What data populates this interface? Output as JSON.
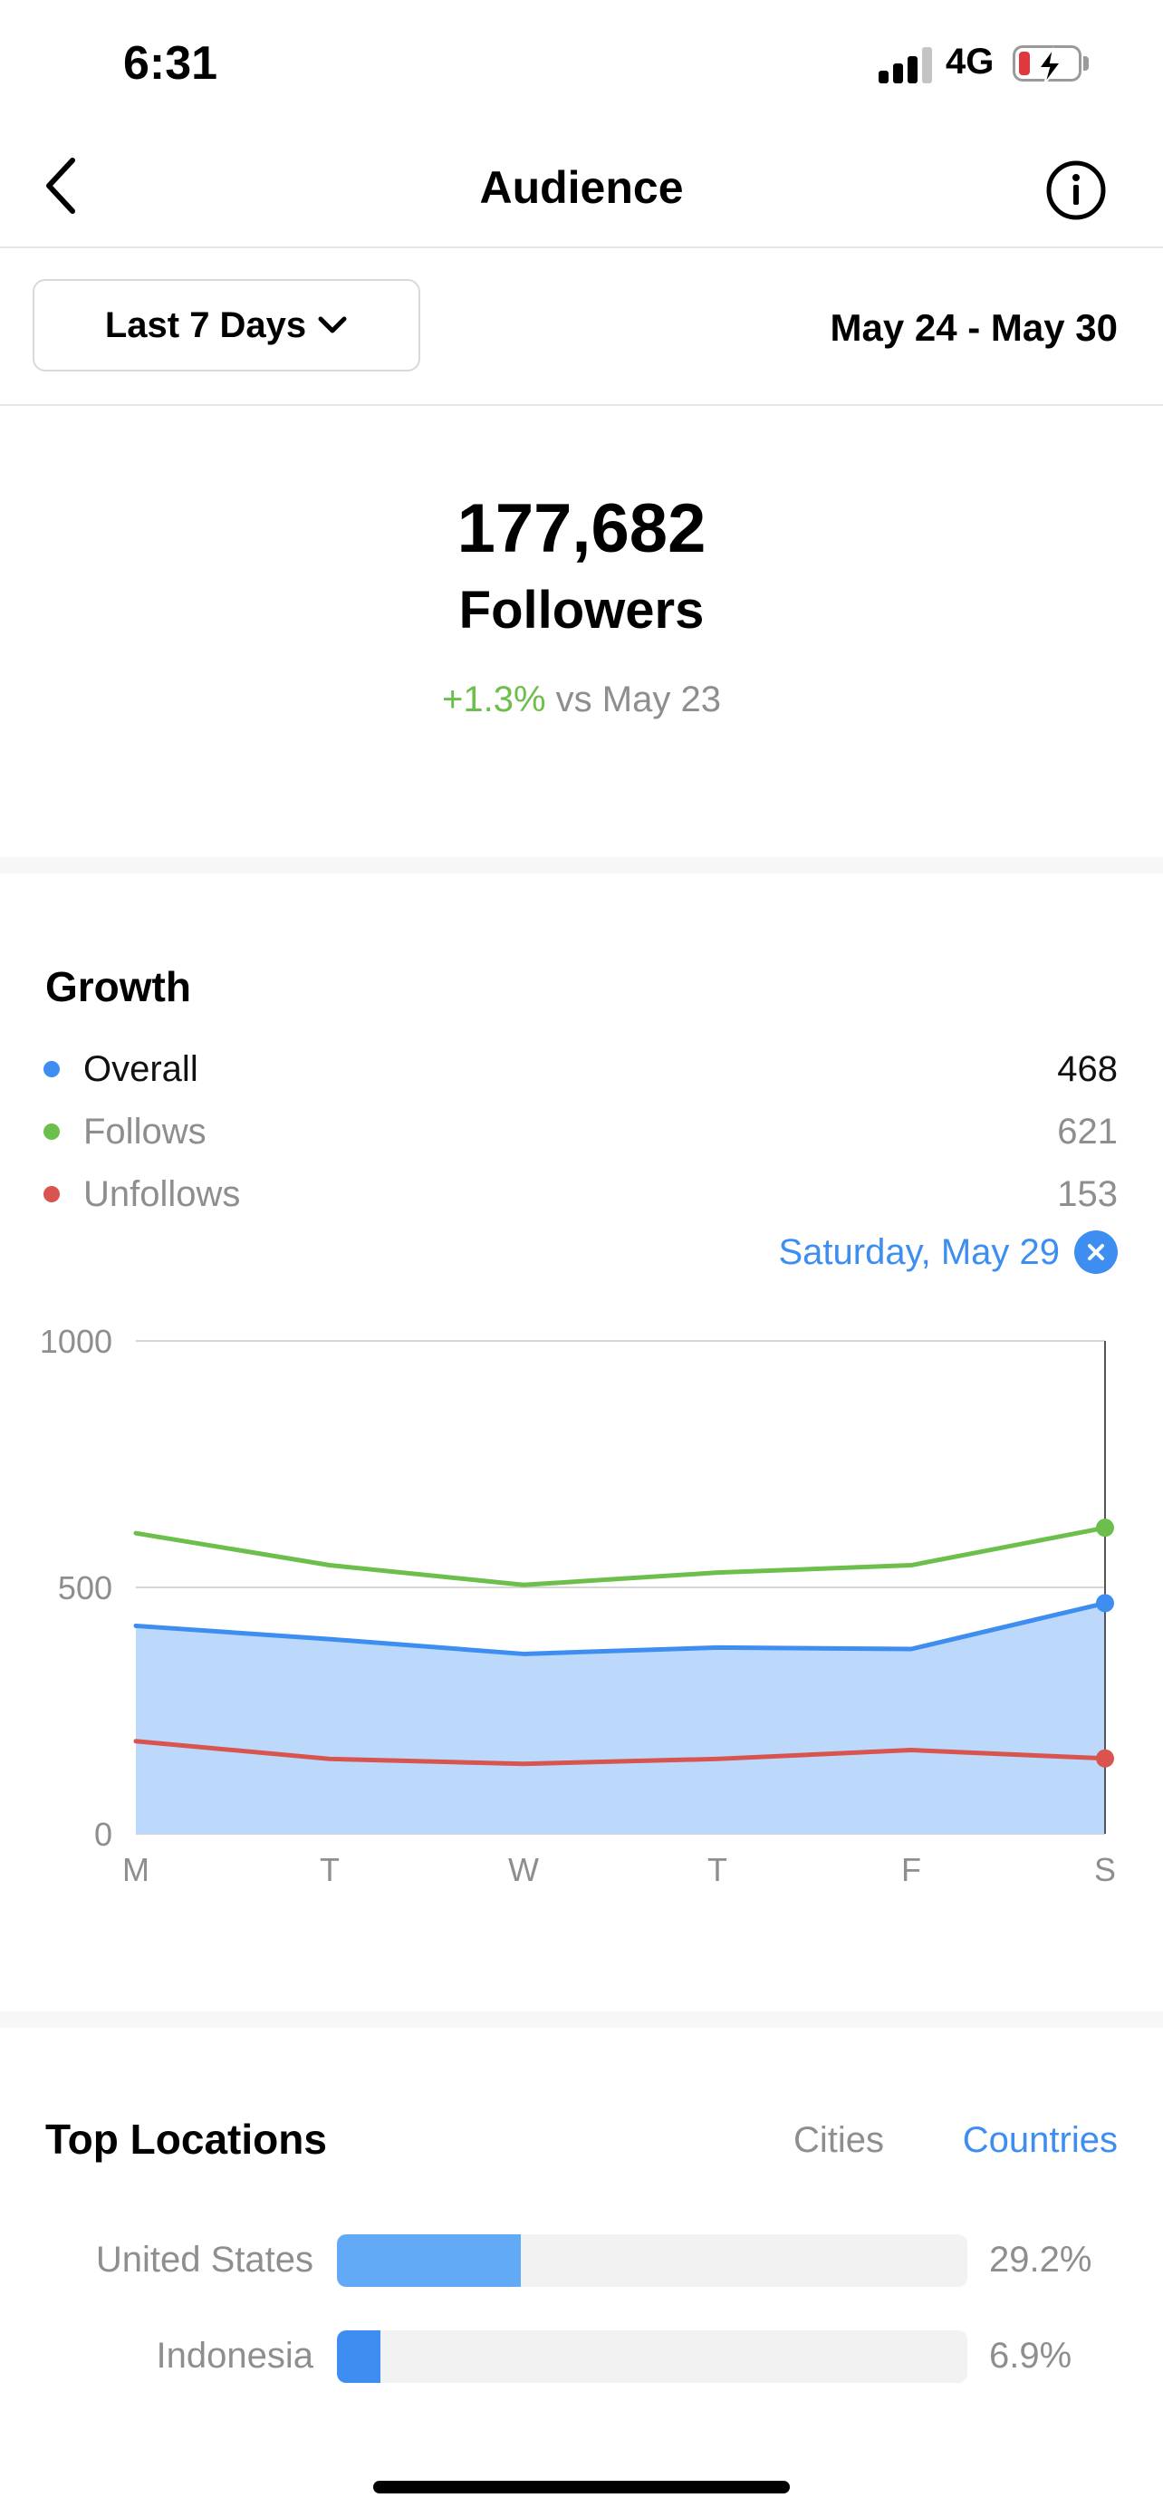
{
  "status_bar": {
    "time": "6:31",
    "network": "4G",
    "battery_level": 0.15,
    "battery_color": "#e0383e",
    "charging": true
  },
  "nav": {
    "title": "Audience",
    "back_icon": "chevron-left-icon",
    "info_icon": "info-icon"
  },
  "range": {
    "selector_label": "Last 7 Days",
    "dates": "May 24 - May 30"
  },
  "followers": {
    "count": "177,682",
    "label": "Followers",
    "change_pct": "+1.3%",
    "change_ref": "vs May 23"
  },
  "growth": {
    "title": "Growth",
    "selected_day": "Saturday, May 29",
    "legend": [
      {
        "name": "Overall",
        "value": "468",
        "color": "#3d8ef0",
        "name_color": "#111111"
      },
      {
        "name": "Follows",
        "value": "621",
        "color": "#6dbf4b",
        "name_color": "#8e8e8e"
      },
      {
        "name": "Unfollows",
        "value": "153",
        "color": "#d9534f",
        "name_color": "#8e8e8e"
      }
    ]
  },
  "chart_data": {
    "type": "line",
    "categories": [
      "M",
      "T",
      "W",
      "T",
      "F",
      "S"
    ],
    "ylim": [
      0,
      1000
    ],
    "yticks": [
      "1000",
      "500",
      "0"
    ],
    "grid": true,
    "highlighted_index": 5,
    "series": [
      {
        "name": "Follows",
        "color": "#6dbf4b",
        "values": [
          610,
          545,
          505,
          530,
          545,
          621
        ]
      },
      {
        "name": "Overall",
        "color": "#3d8ef0",
        "fill": "#bcd9fb",
        "values": [
          422,
          395,
          365,
          378,
          375,
          468
        ]
      },
      {
        "name": "Unfollows",
        "color": "#d9534f",
        "values": [
          188,
          152,
          142,
          152,
          170,
          153
        ]
      }
    ]
  },
  "top_locations": {
    "title": "Top Locations",
    "tabs": {
      "cities": "Cities",
      "countries": "Countries",
      "active": "countries"
    },
    "rows": [
      {
        "name": "United States",
        "pct_label": "29.2%",
        "fraction": 0.292,
        "color": "#62aaf6"
      },
      {
        "name": "Indonesia",
        "pct_label": "6.9%",
        "fraction": 0.069,
        "color": "#3d8ef0"
      }
    ]
  }
}
